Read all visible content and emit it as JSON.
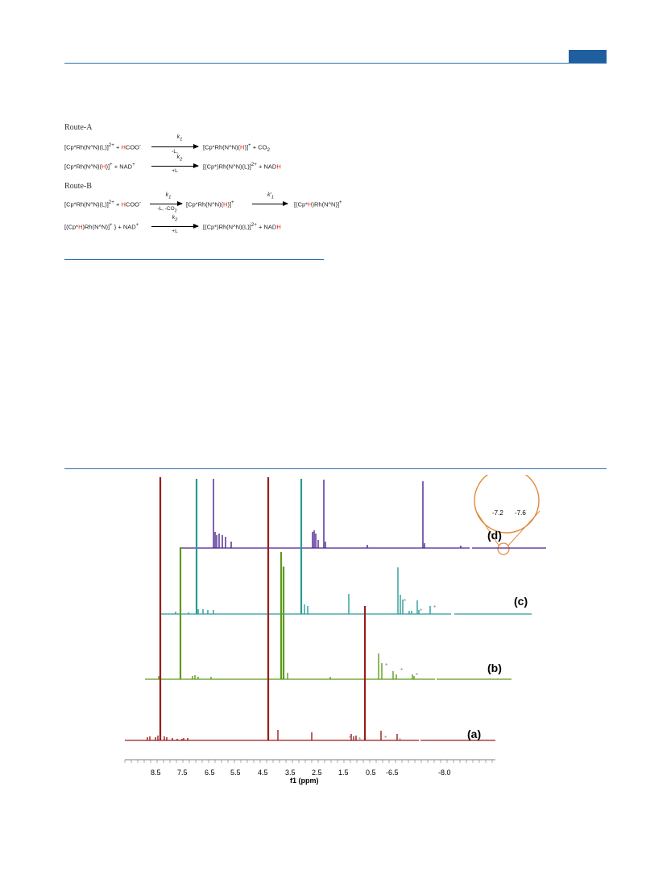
{
  "scheme": {
    "route_a": {
      "label": "Route-A",
      "eq1": {
        "left_a": "[Cp*Rh(N^N)(L)]",
        "left_a_sup": "2+",
        "plus1": " + ",
        "left_b_h": "H",
        "left_b": "COO",
        "left_b_sup": "-",
        "k": "k",
        "k_sub": "1",
        "cond": "-L,",
        "right_a": "[Cp*Rh(N^N)(",
        "right_h": "H",
        "right_b": ")]",
        "right_sup": "+",
        "right_c": " + CO",
        "right_c_sub": "2"
      },
      "eq2": {
        "left_a": "[Cp*Rh(N^N)(",
        "left_h": "H",
        "left_b": ")]",
        "left_sup": "+",
        "plus": "  +  NAD",
        "nad_sup": "+",
        "k": "k",
        "k_sub": "2",
        "cond": "+L",
        "right_a": "[(Cp*)Rh(N^N)(L)]",
        "right_sup": "2+",
        "right_b": " + NAD",
        "right_h": "H"
      }
    },
    "route_b": {
      "label": "Route-B",
      "eq1": {
        "left_a": "[Cp*Rh(N^N)(L)]",
        "left_a_sup": "2+",
        "plus1": " + ",
        "left_b_h": "H",
        "left_b": "COO",
        "left_b_sup": "-",
        "k": "k",
        "k_sub": "1",
        "cond": "-L, -CO",
        "cond_sub": "2",
        "mid_a": "[Cp*Rh(N^N)(",
        "mid_h": "H",
        "mid_b": ")]",
        "mid_sup": "+",
        "k2": "k'",
        "k2_sub": "1",
        "right_a": "[(Cp*",
        "right_h": "H",
        "right_b": ")Rh(N^N)]",
        "right_sup": "+"
      },
      "eq2": {
        "left_a": "[(Cp*",
        "left_h": "H",
        "left_b": ")Rh(N^N)]",
        "left_sup": "+",
        "left_c": " } + NAD",
        "nad_sup": "+",
        "k": "k",
        "k_sub": "2",
        "cond": "+L",
        "right_a": "[(Cp*)Rh(N^N)(L)]",
        "right_sup": "2+",
        "right_b": " + NAD",
        "right_h": "H"
      }
    }
  },
  "spectra": {
    "axis_label": "f1 (ppm)",
    "ticks_left": [
      "8.5",
      "7.5",
      "6.5",
      "5.5",
      "4.5",
      "3.5",
      "2.5",
      "1.5",
      "0.5",
      "-6.5"
    ],
    "tick_right": "-8.0",
    "trace_labels": [
      "(a)",
      "(b)",
      "(c)",
      "(d)"
    ],
    "colors": {
      "a": "#9b1c1c",
      "b": "#5e9a1f",
      "c": "#2a9b96",
      "d": "#4b1f8f",
      "zoom": "#e08a3a",
      "rule": "#2f6fae"
    },
    "inset_ticks": [
      "-7.2",
      "-7.6"
    ],
    "marker": "*"
  }
}
